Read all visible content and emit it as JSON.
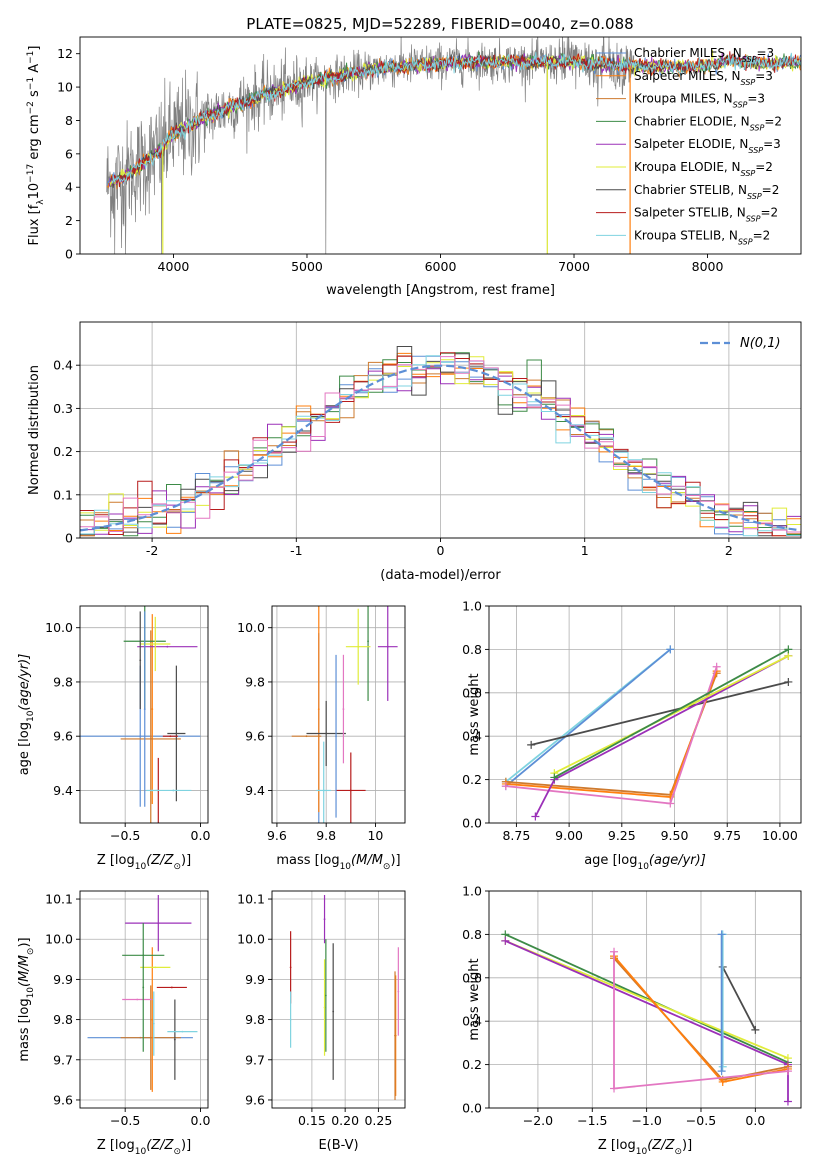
{
  "figure": {
    "title": "PLATE=0825, MJD=52289, FIBERID=0040, z=0.088"
  },
  "colors": {
    "Chabrier MILES": "#5d8fd6",
    "Salpeter MILES": "#ff7f0e",
    "Kroupa MILES": "#ce7a2e",
    "Chabrier ELODIE": "#3d8b47",
    "Salpeter ELODIE": "#9b30b8",
    "Kroupa ELODIE": "#e0ec3a",
    "Chabrier STELIB": "#4b4b4b",
    "Salpeter STELIB": "#b71c1c",
    "Kroupa STELIB": "#7fd3e0",
    "Pink extra": "#e377c2"
  },
  "chart_data": [
    {
      "id": "spectrum",
      "type": "line",
      "title": "PLATE=0825, MJD=52289, FIBERID=0040, z=0.088",
      "xlabel": "wavelength [Angstrom, rest frame]",
      "ylabel_parts": [
        "Flux [f",
        "λ",
        "10",
        "−17",
        " erg cm",
        "−2",
        " s",
        "−1",
        " A",
        "−1",
        "]"
      ],
      "xlim": [
        3300,
        8700
      ],
      "ylim": [
        0,
        13
      ],
      "xticks": [
        4000,
        5000,
        6000,
        7000,
        8000
      ],
      "yticks": [
        0,
        2,
        4,
        6,
        8,
        10,
        12
      ],
      "grid": false,
      "legend_position": "top-right",
      "legend": [
        {
          "model": "Chabrier MILES",
          "nssp": "3"
        },
        {
          "model": "Salpeter MILES",
          "nssp": "3"
        },
        {
          "model": "Kroupa MILES",
          "nssp": "3"
        },
        {
          "model": "Chabrier ELODIE",
          "nssp": "2"
        },
        {
          "model": "Salpeter ELODIE",
          "nssp": "3"
        },
        {
          "model": "Kroupa ELODIE",
          "nssp": "2"
        },
        {
          "model": "Chabrier STELIB",
          "nssp": "2"
        },
        {
          "model": "Salpeter STELIB",
          "nssp": "2"
        },
        {
          "model": "Kroupa STELIB",
          "nssp": "2"
        }
      ],
      "continuum": {
        "x": [
          3500,
          3600,
          3700,
          3800,
          3900,
          4000,
          4100,
          4200,
          4300,
          4400,
          4500,
          4600,
          4700,
          4800,
          4900,
          5000,
          5200,
          5400,
          5600,
          5800,
          6000,
          6200,
          6400,
          6600,
          6800,
          7000,
          7200,
          7400,
          7600,
          7800,
          8000,
          8200,
          8400,
          8700
        ],
        "y": [
          4.2,
          4.5,
          5.0,
          5.6,
          6.2,
          7.2,
          7.6,
          8.0,
          8.4,
          8.7,
          9.0,
          9.3,
          9.6,
          9.8,
          10.0,
          10.3,
          10.6,
          10.9,
          11.2,
          11.3,
          11.4,
          11.5,
          11.5,
          11.5,
          11.5,
          11.5,
          11.4,
          11.3,
          11.2,
          11.2,
          11.3,
          11.6,
          11.4,
          11.5
        ]
      },
      "data_x_range": [
        3500,
        7450
      ],
      "data_spikes_down": [
        3560,
        3640,
        3910,
        5140,
        6800
      ],
      "model_color_order": [
        "Chabrier MILES",
        "Salpeter MILES",
        "Kroupa MILES",
        "Chabrier ELODIE",
        "Salpeter ELODIE",
        "Kroupa ELODIE",
        "Chabrier STELIB",
        "Salpeter STELIB",
        "Kroupa STELIB"
      ]
    },
    {
      "id": "residuals",
      "type": "histogram",
      "xlabel": "(data-model)/error",
      "ylabel": "Normed distribution",
      "xlim": [
        -2.5,
        2.5
      ],
      "ylim": [
        0,
        0.5
      ],
      "xticks": [
        -2,
        -1,
        0,
        1,
        2
      ],
      "yticks": [
        0.0,
        0.1,
        0.2,
        0.3,
        0.4
      ],
      "grid": true,
      "legend_position": "top-right",
      "legend_label": "N(0,1)",
      "reference_curve": {
        "type": "gaussian",
        "mean": 0,
        "sigma": 1,
        "color": "#5d8fd6"
      },
      "bin_width": 0.1
    },
    {
      "id": "age-vs-Z",
      "type": "scatter",
      "xlabel_parts": [
        "Z [log",
        "10",
        "(Z/Z",
        "⊙",
        ")]"
      ],
      "ylabel_parts": [
        "age  [log",
        "10",
        "(age/yr)]"
      ],
      "xlim": [
        -0.8,
        0.05
      ],
      "ylim": [
        9.28,
        10.08
      ],
      "xticks": [
        -0.5,
        0.0
      ],
      "xticklabels": [
        "−0.5",
        "0.0"
      ],
      "yticks": [
        9.4,
        9.6,
        9.8,
        10.0
      ],
      "grid": true,
      "points": [
        {
          "model": "Chabrier MILES",
          "x": -0.4,
          "y": 9.6,
          "xerr": 0.4,
          "yerr": 0.26
        },
        {
          "model": "Salpeter MILES",
          "x": -0.32,
          "y": 9.7,
          "xerr": 0.0,
          "yerr": 0.35
        },
        {
          "model": "Kroupa MILES",
          "x": -0.33,
          "y": 9.59,
          "xerr": 0.2,
          "yerr": 0.4
        },
        {
          "model": "Chabrier ELODIE",
          "x": -0.37,
          "y": 9.95,
          "xerr": 0.14,
          "yerr": 0.25
        },
        {
          "model": "Salpeter ELODIE",
          "x": -0.22,
          "y": 9.93,
          "xerr": 0.2,
          "yerr": 0.0
        },
        {
          "model": "Kroupa ELODIE",
          "x": -0.3,
          "y": 9.94,
          "xerr": 0.1,
          "yerr": 0.1
        },
        {
          "model": "Chabrier STELIB",
          "x": -0.16,
          "y": 9.61,
          "xerr": 0.06,
          "yerr": 0.25
        },
        {
          "model": "Salpeter STELIB",
          "x": -0.28,
          "y": 9.4,
          "xerr": 0.0,
          "yerr": 0.12
        },
        {
          "model": "Kroupa STELIB",
          "x": -0.32,
          "y": 9.4,
          "xerr": 0.04,
          "yerr": 0.0
        },
        {
          "model": "Kroupa STELIB",
          "x": -0.18,
          "y": 9.4,
          "xerr": 0.12,
          "yerr": 0.0
        },
        {
          "model": "Chabrier STELIB",
          "x": -0.4,
          "y": 9.88,
          "xerr": 0.0,
          "yerr": 0.18
        },
        {
          "model": "Chabrier MILES",
          "x": -0.37,
          "y": 9.7,
          "xerr": 0.0,
          "yerr": 0.36
        },
        {
          "model": "Salpeter STELIB",
          "x": -0.2,
          "y": 9.6,
          "xerr": 0.05,
          "yerr": 0.0
        }
      ]
    },
    {
      "id": "age-vs-mass",
      "type": "scatter",
      "xlabel_parts": [
        "mass [log",
        "10",
        "(M/M",
        "⊙",
        ")]"
      ],
      "ylabel": "",
      "xlim": [
        9.58,
        10.12
      ],
      "ylim": [
        9.28,
        10.08
      ],
      "xticks": [
        9.6,
        9.8,
        10.0
      ],
      "yticks": [
        9.4,
        9.6,
        9.8,
        10.0
      ],
      "grid": true,
      "points": [
        {
          "model": "Chabrier MILES",
          "x": 9.77,
          "y": 9.6,
          "xerr": 0.0,
          "yerr": 0.38
        },
        {
          "model": "Salpeter MILES",
          "x": 9.77,
          "y": 9.7,
          "xerr": 0.0,
          "yerr": 0.38
        },
        {
          "model": "Kroupa MILES",
          "x": 9.72,
          "y": 9.6,
          "xerr": 0.06,
          "yerr": 0.0
        },
        {
          "model": "Chabrier ELODIE",
          "x": 9.97,
          "y": 9.95,
          "xerr": 0.0,
          "yerr": 0.22
        },
        {
          "model": "Salpeter ELODIE",
          "x": 10.05,
          "y": 9.93,
          "xerr": 0.04,
          "yerr": 0.2
        },
        {
          "model": "Kroupa ELODIE",
          "x": 9.93,
          "y": 9.93,
          "xerr": 0.05,
          "yerr": 0.14
        },
        {
          "model": "Chabrier STELIB",
          "x": 9.8,
          "y": 9.61,
          "xerr": 0.08,
          "yerr": 0.12
        },
        {
          "model": "Salpeter STELIB",
          "x": 9.9,
          "y": 9.4,
          "xerr": 0.06,
          "yerr": 0.14
        },
        {
          "model": "Kroupa STELIB",
          "x": 9.79,
          "y": 9.4,
          "xerr": 0.03,
          "yerr": 0.18
        },
        {
          "model": "Pink extra",
          "x": 9.87,
          "y": 9.7,
          "xerr": 0.0,
          "yerr": 0.2
        },
        {
          "model": "Chabrier MILES",
          "x": 9.84,
          "y": 9.6,
          "xerr": 0.0,
          "yerr": 0.3
        }
      ]
    },
    {
      "id": "massweight-vs-age",
      "type": "line",
      "xlabel_parts": [
        "age  [log",
        "10",
        "(age/yr)]"
      ],
      "ylabel": "mass weight",
      "xlim": [
        8.62,
        10.1
      ],
      "ylim": [
        0,
        1.0
      ],
      "xticks": [
        8.75,
        9.0,
        9.25,
        9.5,
        9.75,
        10.0
      ],
      "xticklabels": [
        "8.75",
        "9.00",
        "9.25",
        "9.50",
        "9.75",
        "10.00"
      ],
      "yticks": [
        0.0,
        0.2,
        0.4,
        0.6,
        0.8,
        1.0
      ],
      "grid": true,
      "series": [
        {
          "model": "Kroupa STELIB",
          "x": [
            8.7,
            9.48
          ],
          "y": [
            0.19,
            0.8
          ]
        },
        {
          "model": "Chabrier MILES",
          "x": [
            8.7,
            9.48
          ],
          "y": [
            0.17,
            0.8
          ]
        },
        {
          "model": "Chabrier STELIB",
          "x": [
            8.82,
            10.04
          ],
          "y": [
            0.36,
            0.65
          ]
        },
        {
          "model": "Kroupa MILES",
          "x": [
            8.7,
            9.48,
            9.7
          ],
          "y": [
            0.19,
            0.13,
            0.69
          ]
        },
        {
          "model": "Salpeter MILES",
          "x": [
            8.7,
            9.48,
            9.7
          ],
          "y": [
            0.18,
            0.12,
            0.7
          ]
        },
        {
          "model": "Pink extra",
          "x": [
            8.7,
            9.48,
            9.7
          ],
          "y": [
            0.17,
            0.09,
            0.72
          ]
        },
        {
          "model": "Salpeter ELODIE",
          "x": [
            8.84,
            8.93,
            10.04
          ],
          "y": [
            0.03,
            0.2,
            0.77
          ]
        },
        {
          "model": "Kroupa ELODIE",
          "x": [
            8.93,
            10.04
          ],
          "y": [
            0.23,
            0.77
          ]
        },
        {
          "model": "Chabrier ELODIE",
          "x": [
            8.93,
            10.04
          ],
          "y": [
            0.21,
            0.8
          ]
        }
      ]
    },
    {
      "id": "mass-vs-Z",
      "type": "scatter",
      "xlabel_parts": [
        "Z [log",
        "10",
        "(Z/Z",
        "⊙",
        ")]"
      ],
      "ylabel_parts": [
        "mass [log",
        "10",
        "(M/M",
        "⊙",
        ")]"
      ],
      "xlim": [
        -0.8,
        0.05
      ],
      "ylim": [
        9.58,
        10.12
      ],
      "xticks": [
        -0.5,
        0.0
      ],
      "xticklabels": [
        "−0.5",
        "0.0"
      ],
      "yticks": [
        9.6,
        9.7,
        9.8,
        9.9,
        10.0,
        10.1
      ],
      "grid": true,
      "points": [
        {
          "model": "Chabrier MILES",
          "x": -0.4,
          "y": 9.755,
          "xerr": 0.35,
          "yerr": 0.0
        },
        {
          "model": "Kroupa MILES",
          "x": -0.33,
          "y": 9.755,
          "xerr": 0.2,
          "yerr": 0.13
        },
        {
          "model": "Salpeter MILES",
          "x": -0.32,
          "y": 9.8,
          "xerr": 0.0,
          "yerr": 0.18
        },
        {
          "model": "Chabrier ELODIE",
          "x": -0.38,
          "y": 9.96,
          "xerr": 0.14,
          "yerr": 0.0
        },
        {
          "model": "Salpeter ELODIE",
          "x": -0.28,
          "y": 10.04,
          "xerr": 0.22,
          "yerr": 0.07
        },
        {
          "model": "Kroupa ELODIE",
          "x": -0.3,
          "y": 9.93,
          "xerr": 0.1,
          "yerr": 0.0
        },
        {
          "model": "Chabrier STELIB",
          "x": -0.17,
          "y": 9.75,
          "xerr": 0.0,
          "yerr": 0.1
        },
        {
          "model": "Salpeter STELIB",
          "x": -0.19,
          "y": 9.88,
          "xerr": 0.1,
          "yerr": 0.0
        },
        {
          "model": "Kroupa STELIB",
          "x": -0.12,
          "y": 9.77,
          "xerr": 0.1,
          "yerr": 0.0
        },
        {
          "model": "Pink extra",
          "x": -0.42,
          "y": 9.85,
          "xerr": 0.1,
          "yerr": 0.0
        },
        {
          "model": "Chabrier ELODIE",
          "x": -0.38,
          "y": 9.88,
          "xerr": 0.0,
          "yerr": 0.16
        },
        {
          "model": "Kroupa STELIB",
          "x": -0.31,
          "y": 9.79,
          "xerr": 0.0,
          "yerr": 0.08
        }
      ]
    },
    {
      "id": "mass-vs-ebv",
      "type": "scatter",
      "xlabel": "E(B-V)",
      "ylabel": "",
      "xlim": [
        0.09,
        0.29
      ],
      "ylim": [
        9.58,
        10.12
      ],
      "xticks": [
        0.15,
        0.2,
        0.25
      ],
      "xticklabels": [
        "0.15",
        "0.20",
        "0.25"
      ],
      "yticks": [
        9.6,
        9.7,
        9.8,
        9.9,
        10.0,
        10.1
      ],
      "grid": true,
      "points": [
        {
          "model": "Salpeter STELIB",
          "x": 0.118,
          "y": 9.93,
          "xerr": 0.0,
          "yerr": 0.09
        },
        {
          "model": "Kroupa STELIB",
          "x": 0.118,
          "y": 9.8,
          "xerr": 0.0,
          "yerr": 0.07
        },
        {
          "model": "Salpeter ELODIE",
          "x": 0.169,
          "y": 10.05,
          "xerr": 0.0,
          "yerr": 0.06
        },
        {
          "model": "Kroupa ELODIE",
          "x": 0.169,
          "y": 9.83,
          "xerr": 0.0,
          "yerr": 0.12
        },
        {
          "model": "Chabrier ELODIE",
          "x": 0.171,
          "y": 9.86,
          "xerr": 0.0,
          "yerr": 0.14
        },
        {
          "model": "Chabrier STELIB",
          "x": 0.182,
          "y": 9.82,
          "xerr": 0.0,
          "yerr": 0.17
        },
        {
          "model": "Salpeter MILES",
          "x": 0.276,
          "y": 9.76,
          "xerr": 0.0,
          "yerr": 0.15
        },
        {
          "model": "Kroupa MILES",
          "x": 0.275,
          "y": 9.76,
          "xerr": 0.0,
          "yerr": 0.16
        },
        {
          "model": "Pink extra",
          "x": 0.28,
          "y": 9.87,
          "xerr": 0.0,
          "yerr": 0.11
        }
      ]
    },
    {
      "id": "massweight-vs-Z",
      "type": "line",
      "xlabel_parts": [
        "Z [log",
        "10",
        "(Z/Z",
        "⊙",
        ")]"
      ],
      "ylabel": "mass weight",
      "xlim": [
        -2.45,
        0.42
      ],
      "ylim": [
        0,
        1.0
      ],
      "xticks": [
        -2.0,
        -1.5,
        -1.0,
        -0.5,
        0.0
      ],
      "xticklabels": [
        "−2.0",
        "−1.5",
        "−1.0",
        "−0.5",
        "0.0"
      ],
      "yticks": [
        0.0,
        0.2,
        0.4,
        0.6,
        0.8,
        1.0
      ],
      "grid": true,
      "series": [
        {
          "model": "Chabrier ELODIE",
          "x": [
            -2.3,
            0.3
          ],
          "y": [
            0.8,
            0.21
          ]
        },
        {
          "model": "Kroupa ELODIE",
          "x": [
            -2.3,
            0.3
          ],
          "y": [
            0.77,
            0.23
          ]
        },
        {
          "model": "Salpeter ELODIE",
          "x": [
            -2.3,
            0.3,
            0.3
          ],
          "y": [
            0.77,
            0.2,
            0.03
          ]
        },
        {
          "model": "Kroupa MILES",
          "x": [
            -1.3,
            -0.3,
            0.3
          ],
          "y": [
            0.69,
            0.13,
            0.19
          ]
        },
        {
          "model": "Salpeter MILES",
          "x": [
            -1.3,
            -0.3,
            0.3
          ],
          "y": [
            0.7,
            0.12,
            0.18
          ]
        },
        {
          "model": "Pink extra",
          "x": [
            0.3,
            -1.3,
            -1.3
          ],
          "y": [
            0.17,
            0.09,
            0.72
          ]
        },
        {
          "model": "Chabrier STELIB",
          "x": [
            0.0,
            -0.3
          ],
          "y": [
            0.36,
            0.65
          ]
        },
        {
          "model": "Kroupa STELIB",
          "x": [
            -0.3,
            -0.3
          ],
          "y": [
            0.19,
            0.8
          ]
        },
        {
          "model": "Chabrier MILES",
          "x": [
            -0.31,
            -0.31
          ],
          "y": [
            0.17,
            0.8
          ]
        }
      ]
    }
  ]
}
